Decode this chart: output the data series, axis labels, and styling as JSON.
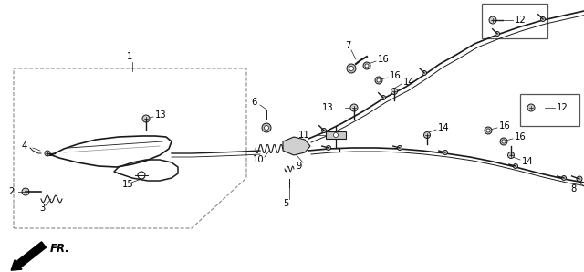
{
  "bg_color": "#ffffff",
  "line_color": "#1a1a1a",
  "label_color": "#000000",
  "fig_width": 6.4,
  "fig_height": 2.98,
  "dpi": 100
}
